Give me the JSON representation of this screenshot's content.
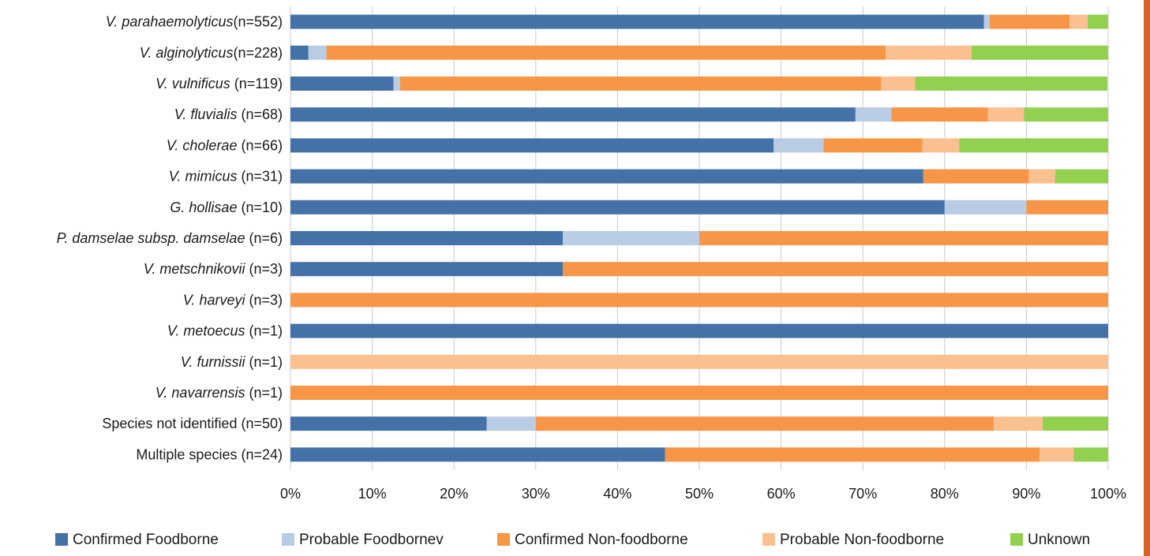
{
  "chart_data": {
    "type": "bar",
    "orientation": "horizontal",
    "stacked": true,
    "percent_stacked": true,
    "title": "",
    "xlabel": "",
    "ylabel": "",
    "xlim": [
      0,
      100
    ],
    "x_ticks": [
      "0%",
      "10%",
      "20%",
      "30%",
      "40%",
      "50%",
      "60%",
      "70%",
      "80%",
      "90%",
      "100%"
    ],
    "grid": true,
    "legend_position": "bottom",
    "categories": [
      {
        "italic": "V. parahaemolyticus",
        "suffix": "(n=552)"
      },
      {
        "italic": "V. alginolyticus",
        "suffix": "(n=228)"
      },
      {
        "italic": "V. vulnificus",
        "suffix": " (n=119)"
      },
      {
        "italic": "V. fluvialis",
        "suffix": " (n=68)"
      },
      {
        "italic": "V. cholerae",
        "suffix": " (n=66)"
      },
      {
        "italic": "V. mimicus",
        "suffix": " (n=31)"
      },
      {
        "italic": "G. hollisae",
        "suffix": " (n=10)"
      },
      {
        "italic": "P. damselae subsp. damselae",
        "suffix": " (n=6)"
      },
      {
        "italic": "V. metschnikovii",
        "suffix": " (n=3)"
      },
      {
        "italic": "V. harveyi",
        "suffix": " (n=3)"
      },
      {
        "italic": "V. metoecus",
        "suffix": " (n=1)"
      },
      {
        "italic": "V. furnissii",
        "suffix": " (n=1)"
      },
      {
        "italic": "V. navarrensis",
        "suffix": " (n=1)"
      },
      {
        "italic": "",
        "suffix": "Species not identified (n=50)"
      },
      {
        "italic": "",
        "suffix": "Multiple species (n=24)"
      }
    ],
    "series": [
      {
        "name": "Confirmed Foodborne",
        "color": "#4472a8",
        "values": [
          84.8,
          2.2,
          12.6,
          69.1,
          59.1,
          77.4,
          80,
          33.3,
          33.3,
          0,
          100,
          0,
          0,
          24,
          45.8
        ]
      },
      {
        "name": "Probable Foodbornev",
        "color": "#b8cce4",
        "values": [
          0.7,
          2.2,
          0.8,
          4.4,
          6.1,
          0,
          10,
          16.7,
          0,
          0,
          0,
          0,
          0,
          6,
          0
        ]
      },
      {
        "name": "Confirmed Non-foodborne",
        "color": "#f79646",
        "values": [
          9.8,
          68.4,
          58.8,
          11.8,
          12.1,
          12.9,
          10,
          50,
          66.7,
          100,
          0,
          0,
          100,
          56,
          45.8
        ]
      },
      {
        "name": "Probable Non-foodborne",
        "color": "#fac090",
        "values": [
          2.2,
          10.5,
          4.2,
          4.4,
          4.5,
          3.2,
          0,
          0,
          0,
          0,
          0,
          100,
          0,
          6,
          4.2
        ]
      },
      {
        "name": "Unknown",
        "color": "#92d050",
        "values": [
          2.5,
          16.7,
          23.5,
          10.3,
          18.2,
          6.5,
          0,
          0,
          0,
          0,
          0,
          0,
          0,
          8,
          4.2
        ]
      }
    ]
  }
}
